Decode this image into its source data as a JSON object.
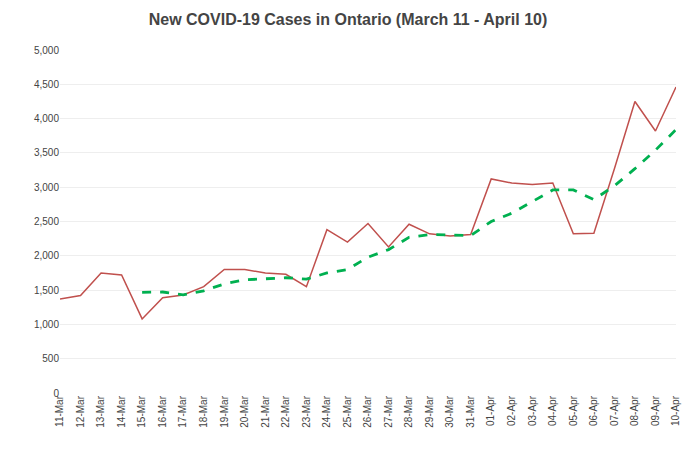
{
  "chart_data": {
    "type": "line",
    "title": "New COVID-19 Cases in Ontario (March 11 - April 10)",
    "categories": [
      "11-Mar",
      "12-Mar",
      "13-Mar",
      "14-Mar",
      "15-Mar",
      "16-Mar",
      "17-Mar",
      "18-Mar",
      "19-Mar",
      "20-Mar",
      "21-Mar",
      "22-Mar",
      "23-Mar",
      "24-Mar",
      "25-Mar",
      "26-Mar",
      "27-Mar",
      "28-Mar",
      "29-Mar",
      "30-Mar",
      "31-Mar",
      "01-Apr",
      "02-Apr",
      "03-Apr",
      "04-Apr",
      "05-Apr",
      "06-Apr",
      "07-Apr",
      "08-Apr",
      "09-Apr",
      "10-Apr"
    ],
    "series": [
      {
        "color": "#C0504D",
        "line_style": "solid",
        "values": [
          1370,
          1420,
          1750,
          1720,
          1080,
          1390,
          1430,
          1550,
          1800,
          1800,
          1750,
          1730,
          1550,
          2380,
          2200,
          2470,
          2130,
          2460,
          2320,
          2290,
          2310,
          3120,
          3060,
          3040,
          3060,
          2320,
          2330,
          3270,
          4250,
          3820,
          4460
        ]
      },
      {
        "color": "#00B050",
        "line_style": "dashed",
        "values": [
          null,
          null,
          null,
          null,
          1468,
          1472,
          1430,
          1490,
          1590,
          1650,
          1665,
          1680,
          1660,
          1750,
          1800,
          1980,
          2090,
          2270,
          2310,
          2300,
          2295,
          2500,
          2620,
          2790,
          2960,
          2960,
          2820,
          3020,
          3270,
          3540,
          3840
        ]
      }
    ],
    "ylim": [
      0,
      5000
    ],
    "yticks": [
      0,
      500,
      {
        "value": 1000,
        "label": "1,000"
      },
      {
        "value": 1500,
        "label": "1,500"
      },
      {
        "value": 2000,
        "label": "2,000"
      },
      {
        "value": 2500,
        "label": "2,500"
      },
      {
        "value": 3000,
        "label": "3,000"
      },
      {
        "value": 3500,
        "label": "3,500"
      },
      {
        "value": 4000,
        "label": "4,000"
      },
      {
        "value": 4500,
        "label": "4,500"
      },
      {
        "value": 5000,
        "label": "5,000"
      }
    ],
    "grid": true
  }
}
